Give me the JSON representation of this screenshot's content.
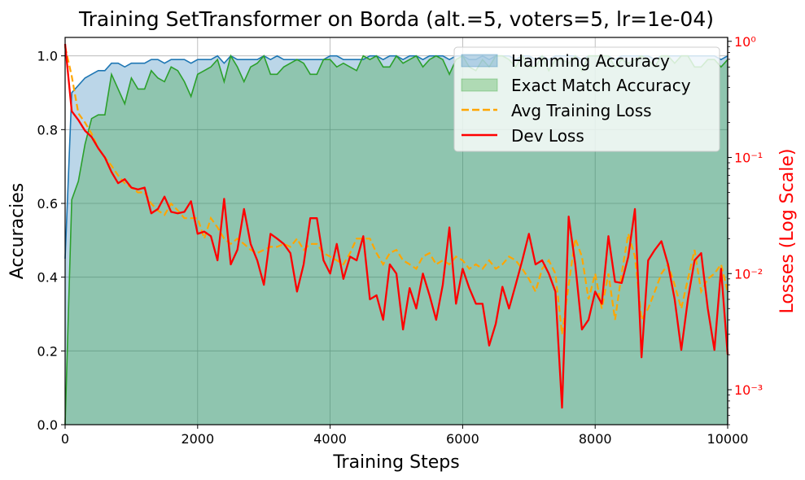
{
  "chart_data": {
    "type": "line",
    "title": "Training SetTransformer on Borda (alt.=5, voters=5, lr=1e-04)",
    "xlabel": "Training Steps",
    "ylabel": "Accuracies",
    "y2label": "Losses (Log Scale)",
    "xlim": [
      0,
      10000
    ],
    "ylim": [
      0,
      1.05
    ],
    "y2lim": [
      0.0005,
      1.08
    ],
    "y2scale": "log",
    "grid": true,
    "legend_position": "top-right",
    "xticks": [
      0,
      2000,
      4000,
      6000,
      8000,
      10000
    ],
    "xtick_labels": [
      "0",
      "2000",
      "4000",
      "6000",
      "8000",
      "10000"
    ],
    "yticks": [
      0.0,
      0.2,
      0.4,
      0.6,
      0.8,
      1.0
    ],
    "ytick_labels": [
      "0.0",
      "0.2",
      "0.4",
      "0.6",
      "0.8",
      "1.0"
    ],
    "y2ticks": [
      0.001,
      0.01,
      0.1,
      1
    ],
    "y2tick_labels": [
      "10⁻³",
      "10⁻²",
      "10⁻¹",
      "10⁰"
    ],
    "colors": {
      "hamming": "#1f77b4",
      "exact": "#2ca02c",
      "train_loss": "#ffa500",
      "dev_loss": "#ff0000",
      "y2_axis": "#ff0000",
      "grid": "#b0b0b0"
    },
    "series": [
      {
        "name": "Hamming Accuracy",
        "axis": "left",
        "style": "filled-line",
        "x": [
          0,
          100,
          200,
          300,
          400,
          500,
          600,
          700,
          800,
          900,
          1000,
          1100,
          1200,
          1300,
          1400,
          1500,
          1600,
          1700,
          1800,
          1900,
          2000,
          2100,
          2200,
          2300,
          2400,
          2500,
          2600,
          2700,
          2800,
          2900,
          3000,
          3100,
          3200,
          3300,
          3400,
          3500,
          3600,
          3700,
          3800,
          3900,
          4000,
          4100,
          4200,
          4300,
          4400,
          4500,
          4600,
          4700,
          4800,
          4900,
          5000,
          5100,
          5200,
          5300,
          5400,
          5500,
          5600,
          5700,
          5800,
          5900,
          6000,
          6100,
          6200,
          6300,
          6400,
          6500,
          6600,
          6700,
          6800,
          6900,
          7000,
          7100,
          7200,
          7300,
          7400,
          7500,
          7600,
          7700,
          7800,
          7900,
          8000,
          8100,
          8200,
          8300,
          8400,
          8500,
          8600,
          8700,
          8800,
          8900,
          9000,
          9100,
          9200,
          9300,
          9400,
          9500,
          9600,
          9700,
          9800,
          9900,
          10000
        ],
        "values": [
          0.45,
          0.9,
          0.92,
          0.94,
          0.95,
          0.96,
          0.96,
          0.98,
          0.98,
          0.97,
          0.98,
          0.98,
          0.98,
          0.99,
          0.99,
          0.98,
          0.99,
          0.99,
          0.99,
          0.98,
          0.99,
          0.99,
          0.99,
          1.0,
          0.98,
          1.0,
          0.99,
          0.99,
          0.99,
          0.99,
          1.0,
          0.99,
          1.0,
          0.99,
          0.99,
          0.99,
          0.99,
          0.99,
          0.99,
          0.99,
          1.0,
          1.0,
          0.99,
          0.99,
          0.99,
          0.99,
          1.0,
          1.0,
          0.99,
          1.0,
          1.0,
          0.99,
          1.0,
          1.0,
          0.99,
          1.0,
          1.0,
          1.0,
          0.99,
          1.0,
          1.0,
          0.99,
          0.99,
          1.0,
          0.99,
          1.0,
          1.0,
          1.0,
          0.99,
          1.0,
          1.0,
          0.99,
          1.0,
          0.99,
          1.0,
          1.0,
          1.0,
          1.0,
          0.99,
          1.0,
          1.0,
          1.0,
          1.0,
          0.99,
          1.0,
          1.0,
          1.0,
          1.0,
          1.0,
          0.99,
          1.0,
          1.0,
          1.0,
          1.0,
          1.0,
          1.0,
          1.0,
          1.0,
          1.0,
          0.99,
          1.0
        ]
      },
      {
        "name": "Exact Match Accuracy",
        "axis": "left",
        "style": "filled-line",
        "x": [
          0,
          100,
          200,
          300,
          400,
          500,
          600,
          700,
          800,
          900,
          1000,
          1100,
          1200,
          1300,
          1400,
          1500,
          1600,
          1700,
          1800,
          1900,
          2000,
          2100,
          2200,
          2300,
          2400,
          2500,
          2600,
          2700,
          2800,
          2900,
          3000,
          3100,
          3200,
          3300,
          3400,
          3500,
          3600,
          3700,
          3800,
          3900,
          4000,
          4100,
          4200,
          4300,
          4400,
          4500,
          4600,
          4700,
          4800,
          4900,
          5000,
          5100,
          5200,
          5300,
          5400,
          5500,
          5600,
          5700,
          5800,
          5900,
          6000,
          6100,
          6200,
          6300,
          6400,
          6500,
          6600,
          6700,
          6800,
          6900,
          7000,
          7100,
          7200,
          7300,
          7400,
          7500,
          7600,
          7700,
          7800,
          7900,
          8000,
          8100,
          8200,
          8300,
          8400,
          8500,
          8600,
          8700,
          8800,
          8900,
          9000,
          9100,
          9200,
          9300,
          9400,
          9500,
          9600,
          9700,
          9800,
          9900,
          10000
        ],
        "values": [
          0.0,
          0.61,
          0.66,
          0.76,
          0.83,
          0.84,
          0.84,
          0.95,
          0.91,
          0.87,
          0.94,
          0.91,
          0.91,
          0.96,
          0.94,
          0.93,
          0.97,
          0.96,
          0.93,
          0.89,
          0.95,
          0.96,
          0.97,
          0.99,
          0.93,
          1.0,
          0.97,
          0.93,
          0.97,
          0.98,
          1.0,
          0.95,
          0.95,
          0.97,
          0.98,
          0.99,
          0.98,
          0.95,
          0.95,
          0.99,
          0.99,
          0.97,
          0.98,
          0.97,
          0.96,
          1.0,
          0.99,
          1.0,
          0.97,
          0.97,
          1.0,
          0.98,
          0.99,
          1.0,
          0.97,
          0.99,
          1.0,
          0.99,
          0.95,
          0.99,
          1.0,
          0.97,
          0.96,
          0.99,
          0.97,
          1.0,
          1.0,
          0.99,
          0.97,
          1.0,
          0.97,
          0.97,
          1.0,
          0.96,
          0.99,
          0.99,
          0.98,
          1.0,
          0.96,
          1.0,
          1.0,
          1.0,
          1.0,
          0.97,
          0.99,
          0.98,
          0.99,
          1.0,
          0.99,
          0.97,
          1.0,
          1.0,
          0.98,
          1.0,
          1.0,
          0.97,
          0.97,
          0.99,
          0.99,
          0.97,
          0.99
        ]
      },
      {
        "name": "Avg Training Loss",
        "axis": "right",
        "style": "dashed-line",
        "x": [
          0,
          100,
          200,
          300,
          400,
          500,
          600,
          700,
          800,
          900,
          1000,
          1100,
          1200,
          1300,
          1400,
          1500,
          1600,
          1700,
          1800,
          1900,
          2000,
          2100,
          2200,
          2300,
          2400,
          2500,
          2600,
          2700,
          2800,
          2900,
          3000,
          3100,
          3200,
          3300,
          3400,
          3500,
          3600,
          3700,
          3800,
          3900,
          4000,
          4100,
          4200,
          4300,
          4400,
          4500,
          4600,
          4700,
          4800,
          4900,
          5000,
          5100,
          5200,
          5300,
          5400,
          5500,
          5600,
          5700,
          5800,
          5900,
          6000,
          6100,
          6200,
          6300,
          6400,
          6500,
          6600,
          6700,
          6800,
          6900,
          7000,
          7100,
          7200,
          7300,
          7400,
          7500,
          7600,
          7700,
          7800,
          7900,
          8000,
          8100,
          8200,
          8300,
          8400,
          8500,
          8600,
          8700,
          8800,
          8900,
          9000,
          9100,
          9200,
          9300,
          9400,
          9500,
          9600,
          9700,
          9800,
          9900,
          10000
        ],
        "values": [
          0.9,
          0.5,
          0.24,
          0.2,
          0.16,
          0.12,
          0.1,
          0.085,
          0.07,
          0.06,
          0.055,
          0.05,
          0.05,
          0.04,
          0.035,
          0.032,
          0.04,
          0.035,
          0.03,
          0.03,
          0.03,
          0.02,
          0.03,
          0.025,
          0.02,
          0.018,
          0.02,
          0.018,
          0.016,
          0.015,
          0.016,
          0.017,
          0.017,
          0.018,
          0.017,
          0.02,
          0.016,
          0.018,
          0.018,
          0.015,
          0.014,
          0.013,
          0.012,
          0.015,
          0.02,
          0.02,
          0.02,
          0.015,
          0.012,
          0.015,
          0.016,
          0.013,
          0.012,
          0.011,
          0.014,
          0.015,
          0.012,
          0.013,
          0.012,
          0.014,
          0.013,
          0.011,
          0.012,
          0.011,
          0.013,
          0.011,
          0.012,
          0.014,
          0.013,
          0.011,
          0.009,
          0.007,
          0.011,
          0.013,
          0.01,
          0.003,
          0.008,
          0.02,
          0.014,
          0.006,
          0.01,
          0.005,
          0.01,
          0.004,
          0.01,
          0.022,
          0.014,
          0.004,
          0.005,
          0.007,
          0.01,
          0.012,
          0.008,
          0.005,
          0.009,
          0.016,
          0.007,
          0.009,
          0.01,
          0.012,
          0.007
        ]
      },
      {
        "name": "Dev Loss",
        "axis": "right",
        "style": "solid-line",
        "x": [
          0,
          100,
          200,
          300,
          400,
          500,
          600,
          700,
          800,
          900,
          1000,
          1100,
          1200,
          1300,
          1400,
          1500,
          1600,
          1700,
          1800,
          1900,
          2000,
          2100,
          2200,
          2300,
          2400,
          2500,
          2600,
          2700,
          2800,
          2900,
          3000,
          3100,
          3200,
          3300,
          3400,
          3500,
          3600,
          3700,
          3800,
          3900,
          4000,
          4100,
          4200,
          4300,
          4400,
          4500,
          4600,
          4700,
          4800,
          4900,
          5000,
          5100,
          5200,
          5300,
          5400,
          5500,
          5600,
          5700,
          5800,
          5900,
          6000,
          6100,
          6200,
          6300,
          6400,
          6500,
          6600,
          6700,
          6800,
          6900,
          7000,
          7100,
          7200,
          7300,
          7400,
          7500,
          7600,
          7700,
          7800,
          7900,
          8000,
          8100,
          8200,
          8300,
          8400,
          8500,
          8600,
          8700,
          8800,
          8900,
          9000,
          9100,
          9200,
          9300,
          9400,
          9500,
          9600,
          9700,
          9800,
          9900,
          10000
        ],
        "values": [
          0.95,
          0.25,
          0.21,
          0.17,
          0.15,
          0.12,
          0.1,
          0.075,
          0.06,
          0.065,
          0.055,
          0.053,
          0.055,
          0.033,
          0.036,
          0.046,
          0.034,
          0.033,
          0.034,
          0.042,
          0.022,
          0.023,
          0.021,
          0.013,
          0.044,
          0.012,
          0.016,
          0.036,
          0.018,
          0.013,
          0.008,
          0.022,
          0.02,
          0.018,
          0.015,
          0.007,
          0.012,
          0.03,
          0.03,
          0.013,
          0.01,
          0.018,
          0.009,
          0.014,
          0.013,
          0.021,
          0.006,
          0.0065,
          0.004,
          0.012,
          0.01,
          0.0033,
          0.0075,
          0.005,
          0.01,
          0.0065,
          0.004,
          0.008,
          0.025,
          0.0055,
          0.011,
          0.0075,
          0.0055,
          0.0055,
          0.0024,
          0.0037,
          0.0077,
          0.005,
          0.008,
          0.013,
          0.022,
          0.012,
          0.013,
          0.01,
          0.007,
          0.0007,
          0.031,
          0.012,
          0.0033,
          0.004,
          0.007,
          0.0055,
          0.021,
          0.0085,
          0.0083,
          0.014,
          0.036,
          0.0019,
          0.013,
          0.016,
          0.019,
          0.012,
          0.006,
          0.0022,
          0.006,
          0.013,
          0.015,
          0.005,
          0.0022,
          0.011,
          0.002
        ]
      }
    ]
  }
}
